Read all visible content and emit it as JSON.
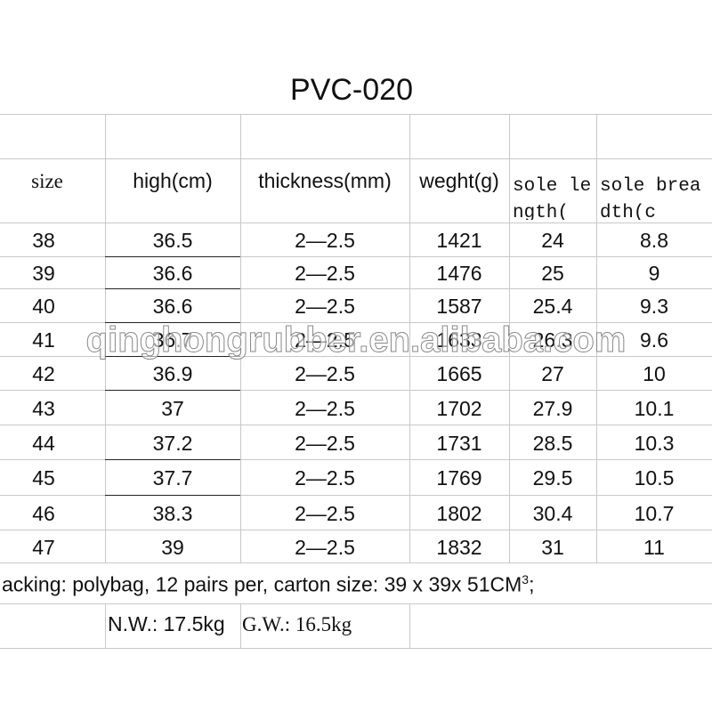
{
  "title": "PVC-020",
  "table": {
    "header": [
      "size",
      "high(cm)",
      "thickness(mm)",
      "weght(g)",
      "sole length(",
      "sole breadth(c"
    ],
    "rows": [
      [
        "38",
        "36.5",
        "2—2.5",
        "1421",
        "24",
        "8.8"
      ],
      [
        "39",
        "36.6",
        "2—2.5",
        "1476",
        "25",
        "9"
      ],
      [
        "40",
        "36.6",
        "2—2.5",
        "1587",
        "25.4",
        "9.3"
      ],
      [
        "41",
        "36.7",
        "2—2.5",
        "1633",
        "26.3",
        "9.6"
      ],
      [
        "42",
        "36.9",
        "2—2.5",
        "1665",
        "27",
        "10"
      ],
      [
        "43",
        "37",
        "2—2.5",
        "1702",
        "27.9",
        "10.1"
      ],
      [
        "44",
        "37.2",
        "2—2.5",
        "1731",
        "28.5",
        "10.3"
      ],
      [
        "45",
        "37.7",
        "2—2.5",
        "1769",
        "29.5",
        "10.5"
      ],
      [
        "46",
        "38.3",
        "2—2.5",
        "1802",
        "30.4",
        "10.7"
      ],
      [
        "47",
        "39",
        "2—2.5",
        "1832",
        "31",
        "11"
      ]
    ]
  },
  "packing": {
    "text": "acking: polybag, 12 pairs per, carton size: 39 x 39x 51CM",
    "sup": "3",
    "end": ";"
  },
  "weights": {
    "nw": "N.W.: 17.5kg",
    "gw": "G.W.: 16.5kg"
  },
  "watermark": "qinghongrubber.en.alibaba.com"
}
